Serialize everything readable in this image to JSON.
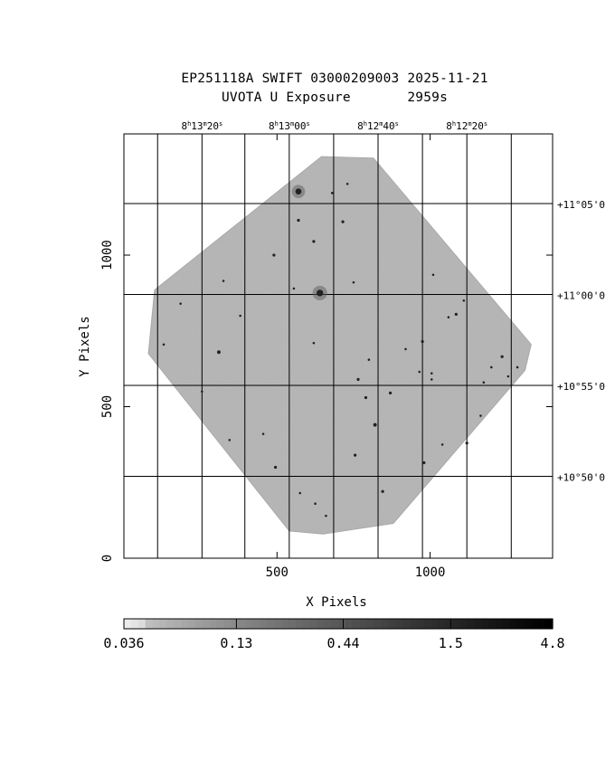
{
  "header": {
    "title": "EP251118A SWIFT 03000209003 2025-11-21",
    "subtitle": "UVOTA U Exposure       2959s"
  },
  "colors": {
    "frame": "#000000",
    "field_fill": "#b4b4b4",
    "field_edge": "#a8a8a8",
    "star": "#222222"
  },
  "chart_data": {
    "type": "heatmap",
    "title": "EP251118A SWIFT 03000209003 2025-11-21",
    "subtitle": "UVOTA U Exposure       2959s",
    "xlabel": "X Pixels",
    "ylabel": "Y Pixels",
    "xlim": [
      0,
      1400
    ],
    "ylim": [
      0,
      1400
    ],
    "x_ticks": [
      500,
      1000
    ],
    "x_tick_labels": [
      "500",
      "1000"
    ],
    "y_ticks": [
      0,
      500,
      1000
    ],
    "y_tick_labels": [
      "0",
      "500",
      "1000"
    ],
    "ra_ticks": [
      {
        "label": "8h13m20s",
        "h": "8",
        "m": "13",
        "s": "20",
        "x": 255
      },
      {
        "label": "8h13m00s",
        "h": "8",
        "m": "13",
        "s": "00",
        "x": 540
      },
      {
        "label": "8h12m40s",
        "h": "8",
        "m": "12",
        "s": "40",
        "x": 830
      },
      {
        "label": "8h12m20s",
        "h": "8",
        "m": "12",
        "s": "20",
        "x": 1120
      }
    ],
    "ra_grid_x": [
      110,
      255,
      395,
      540,
      685,
      830,
      975,
      1120,
      1265
    ],
    "dec_ticks": [
      {
        "label": "+11°05'0",
        "deg": "+11°",
        "min": "05'0",
        "y": 1170
      },
      {
        "label": "+11°00'0",
        "deg": "+11°",
        "min": "00'0",
        "y": 870
      },
      {
        "label": "+10°55'0",
        "deg": "+10°",
        "min": "55'0",
        "y": 570
      },
      {
        "label": "+10°50'0",
        "deg": "+10°",
        "min": "50'0",
        "y": 270
      }
    ],
    "field_polygon": [
      [
        645,
        1325
      ],
      [
        815,
        1320
      ],
      [
        1330,
        705
      ],
      [
        1310,
        620
      ],
      [
        880,
        115
      ],
      [
        650,
        80
      ],
      [
        540,
        90
      ],
      [
        80,
        675
      ],
      [
        100,
        885
      ]
    ],
    "sources": [
      {
        "x": 570,
        "y": 1210,
        "r": 8
      },
      {
        "x": 640,
        "y": 875,
        "r": 9
      },
      {
        "x": 570,
        "y": 1115,
        "r": 3
      },
      {
        "x": 715,
        "y": 1110,
        "r": 3
      },
      {
        "x": 620,
        "y": 1045,
        "r": 3
      },
      {
        "x": 490,
        "y": 1000,
        "r": 3
      },
      {
        "x": 680,
        "y": 1205,
        "r": 2
      },
      {
        "x": 730,
        "y": 1235,
        "r": 2
      },
      {
        "x": 555,
        "y": 890,
        "r": 2
      },
      {
        "x": 750,
        "y": 910,
        "r": 2
      },
      {
        "x": 310,
        "y": 680,
        "r": 4
      },
      {
        "x": 130,
        "y": 705,
        "r": 2
      },
      {
        "x": 185,
        "y": 840,
        "r": 2
      },
      {
        "x": 620,
        "y": 710,
        "r": 2
      },
      {
        "x": 765,
        "y": 590,
        "r": 3
      },
      {
        "x": 790,
        "y": 530,
        "r": 3
      },
      {
        "x": 870,
        "y": 545,
        "r": 3
      },
      {
        "x": 820,
        "y": 440,
        "r": 4
      },
      {
        "x": 755,
        "y": 340,
        "r": 3
      },
      {
        "x": 845,
        "y": 220,
        "r": 3
      },
      {
        "x": 980,
        "y": 315,
        "r": 3
      },
      {
        "x": 1040,
        "y": 375,
        "r": 2
      },
      {
        "x": 1120,
        "y": 380,
        "r": 3
      },
      {
        "x": 1085,
        "y": 805,
        "r": 3
      },
      {
        "x": 1060,
        "y": 795,
        "r": 2
      },
      {
        "x": 975,
        "y": 715,
        "r": 3
      },
      {
        "x": 1235,
        "y": 665,
        "r": 3
      },
      {
        "x": 1200,
        "y": 630,
        "r": 2
      },
      {
        "x": 1285,
        "y": 630,
        "r": 2
      },
      {
        "x": 1255,
        "y": 600,
        "r": 2
      },
      {
        "x": 965,
        "y": 615,
        "r": 2
      },
      {
        "x": 1005,
        "y": 610,
        "r": 2
      },
      {
        "x": 1005,
        "y": 590,
        "r": 2
      },
      {
        "x": 1175,
        "y": 580,
        "r": 2
      },
      {
        "x": 455,
        "y": 410,
        "r": 2
      },
      {
        "x": 495,
        "y": 300,
        "r": 3
      },
      {
        "x": 345,
        "y": 390,
        "r": 2
      },
      {
        "x": 575,
        "y": 215,
        "r": 2
      },
      {
        "x": 625,
        "y": 180,
        "r": 2
      },
      {
        "x": 660,
        "y": 140,
        "r": 2
      },
      {
        "x": 800,
        "y": 655,
        "r": 2
      },
      {
        "x": 920,
        "y": 690,
        "r": 2
      },
      {
        "x": 255,
        "y": 550,
        "r": 2
      },
      {
        "x": 325,
        "y": 915,
        "r": 2
      },
      {
        "x": 380,
        "y": 800,
        "r": 2
      },
      {
        "x": 1010,
        "y": 935,
        "r": 2
      },
      {
        "x": 1110,
        "y": 850,
        "r": 2
      },
      {
        "x": 1165,
        "y": 470,
        "r": 2
      }
    ],
    "colorbar": {
      "scale": "log",
      "range": [
        0.036,
        4.8
      ],
      "tick_values": [
        0.036,
        0.13,
        0.44,
        1.5,
        4.8
      ],
      "tick_labels": [
        "0.036",
        "0.13",
        "0.44",
        "1.5",
        "4.8"
      ]
    }
  }
}
